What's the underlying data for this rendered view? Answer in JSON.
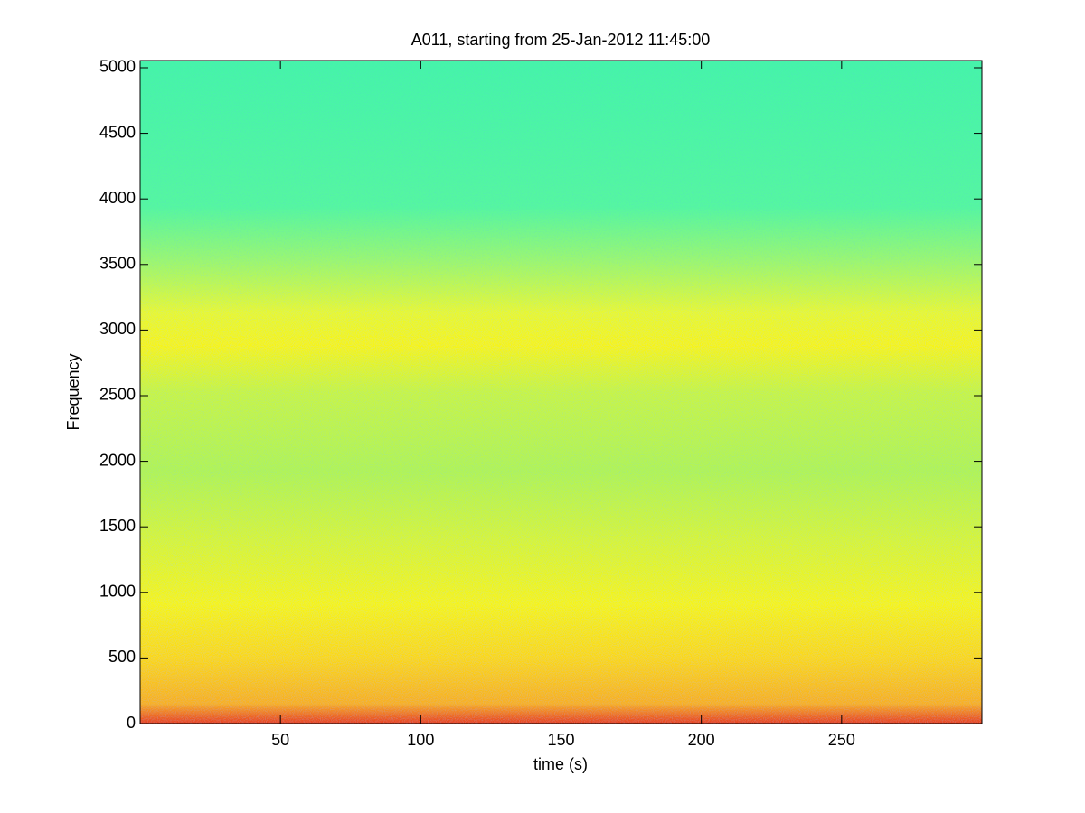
{
  "chart_data": {
    "type": "spectrogram",
    "title": "A011, starting from 25-Jan-2012 11:45:00",
    "xlabel": "time (s)",
    "ylabel": "Frequency",
    "xlim": [
      0,
      300
    ],
    "ylim": [
      0,
      5055
    ],
    "xticks": [
      50,
      100,
      150,
      200,
      250
    ],
    "yticks": [
      0,
      500,
      1000,
      1500,
      2000,
      2500,
      3000,
      3500,
      4000,
      4500,
      5000
    ]
  }
}
